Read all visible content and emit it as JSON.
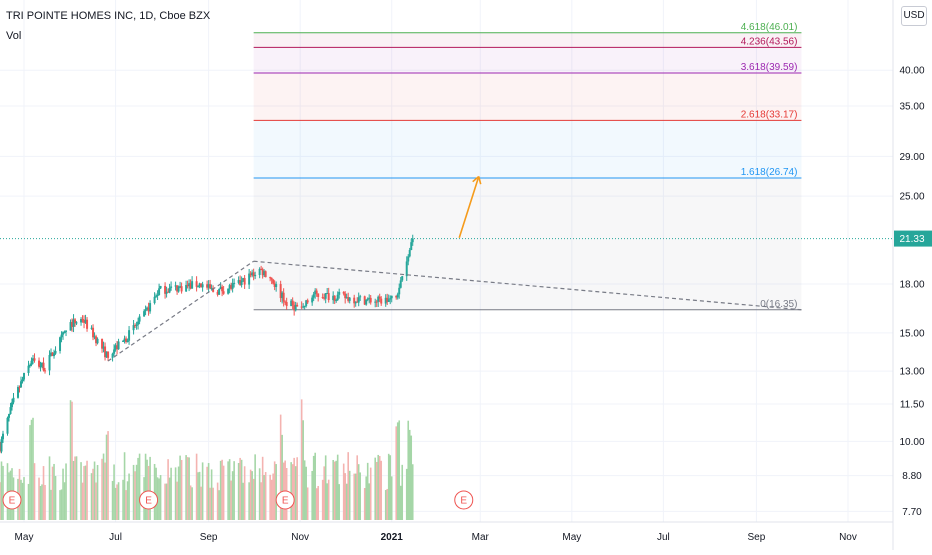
{
  "title": "TRI POINTE HOMES INC, 1D, Cboe BZX",
  "volume_label": "Vol",
  "currency_badge": "USD",
  "colors": {
    "up": "#26a69a",
    "down": "#ef5350",
    "vol_up": "#a5d6a7",
    "vol_down": "#f4b3b0",
    "price_label_bg": "#26a69a",
    "arrow": "#f59b1b"
  },
  "chart_data": {
    "type": "candlestick",
    "title": "TRI POINTE HOMES INC, 1D, Cboe BZX",
    "y_scale": "log",
    "ylim": [
      7.4,
      52
    ],
    "y_ticks": [
      "40.00",
      "35.00",
      "29.00",
      "25.00",
      "18.00",
      "15.00",
      "13.00",
      "11.50",
      "10.00",
      "8.80",
      "7.70"
    ],
    "y_tick_values": [
      40,
      35,
      29,
      25,
      18,
      15,
      13,
      11.5,
      10,
      8.8,
      7.7
    ],
    "x_ticks": [
      "May",
      "Jul",
      "Sep",
      "Nov",
      "2021",
      "Mar",
      "May",
      "Jul",
      "Sep",
      "Nov"
    ],
    "x_tick_dates": [
      "2020-05-01",
      "2020-07-01",
      "2020-09-01",
      "2020-11-01",
      "2021-01-01",
      "2021-03-01",
      "2021-05-01",
      "2021-07-01",
      "2021-09-01",
      "2021-11-01"
    ],
    "x_range": [
      "2020-04-15",
      "2021-12-01"
    ],
    "last_price": "21.33",
    "price_path": {
      "dates": [
        "2020-04-15",
        "2020-04-25",
        "2020-05-06",
        "2020-05-15",
        "2020-06-01",
        "2020-06-09",
        "2020-06-25",
        "2020-07-06",
        "2020-07-20",
        "2020-07-30",
        "2020-08-15",
        "2020-08-26",
        "2020-09-05",
        "2020-09-20",
        "2020-10-05",
        "2020-10-12",
        "2020-10-22",
        "2020-11-02",
        "2020-11-10",
        "2020-11-25",
        "2020-12-10",
        "2020-12-22",
        "2021-01-04",
        "2021-01-08",
        "2021-01-12",
        "2021-01-15"
      ],
      "values": [
        9.8,
        11.8,
        13.5,
        13.2,
        15.5,
        15.8,
        13.8,
        14.5,
        16.0,
        17.6,
        17.8,
        18.0,
        17.5,
        17.9,
        19.0,
        18.5,
        16.8,
        16.4,
        17.3,
        17.2,
        17.0,
        16.9,
        17.0,
        18.6,
        20.2,
        21.33
      ]
    },
    "volume_spikes": [
      "2020-05-06",
      "2020-06-01",
      "2020-06-26",
      "2020-10-19",
      "2020-11-02",
      "2021-01-05",
      "2021-01-13"
    ],
    "earnings_markers": {
      "label": "E",
      "dates": [
        "2020-04-23",
        "2020-07-23",
        "2020-10-22",
        "2021-02-18"
      ]
    },
    "fibonacci_extension": {
      "levels": [
        {
          "label": "4.618(46.01)",
          "price": 46.01,
          "color": "#4caf50"
        },
        {
          "label": "4.236(43.56)",
          "price": 43.56,
          "color": "#b2185a"
        },
        {
          "label": "3.618(39.59)",
          "price": 39.59,
          "color": "#9c27b0"
        },
        {
          "label": "2.618(33.17)",
          "price": 33.17,
          "color": "#e53935"
        },
        {
          "label": "1.618(26.74)",
          "price": 26.74,
          "color": "#2196f3"
        },
        {
          "label": "0(16.35)",
          "price": 16.35,
          "color": "#787b86"
        }
      ],
      "start_date": "2020-10-01",
      "end_date": "2021-10-01"
    },
    "trendlines": [
      {
        "from": {
          "date": "2020-06-26",
          "price": 13.5
        },
        "to": {
          "date": "2020-10-01",
          "price": 19.6
        },
        "style": "dashed",
        "color": "#787b86"
      },
      {
        "from": {
          "date": "2020-10-01",
          "price": 19.6
        },
        "to": {
          "date": "2021-10-01",
          "price": 16.35
        },
        "style": "dashed",
        "color": "#787b86"
      }
    ],
    "arrow": {
      "from": {
        "date": "2021-02-15",
        "price": 21.4
      },
      "to": {
        "date": "2021-02-28",
        "price": 26.9
      },
      "color": "#f59b1b"
    }
  }
}
